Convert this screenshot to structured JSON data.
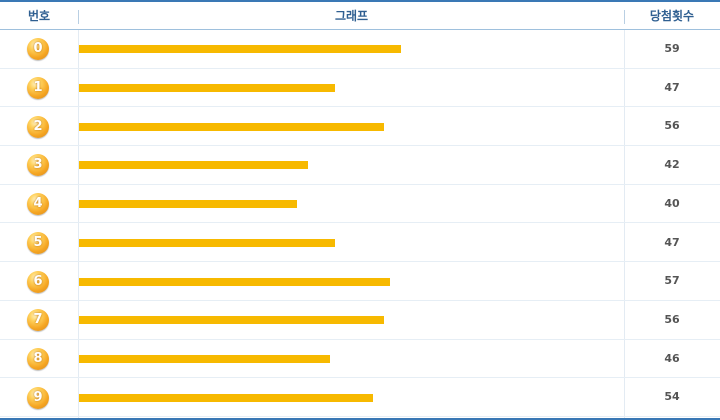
{
  "header": {
    "number": "번호",
    "graph": "그래프",
    "count": "당첨횟수"
  },
  "colors": {
    "bar": "#f7b900",
    "header_text": "#2f5f91",
    "border": "#3a78b5",
    "ball": "#f5a623"
  },
  "chart_data": {
    "type": "bar",
    "orientation": "horizontal",
    "categories": [
      "0",
      "1",
      "2",
      "3",
      "4",
      "5",
      "6",
      "7",
      "8",
      "9"
    ],
    "values": [
      59,
      47,
      56,
      42,
      40,
      47,
      57,
      56,
      46,
      54
    ],
    "xlim": [
      0,
      100
    ],
    "grid": false
  }
}
